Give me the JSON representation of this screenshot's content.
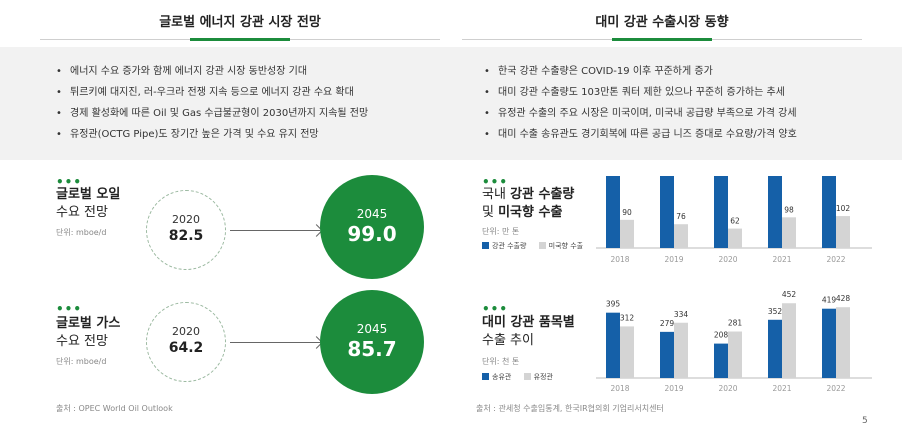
{
  "left_header": "글로벌 에너지 강관 시장 전망",
  "right_header": "대미 강관 수출시장 동향",
  "left_bullets": [
    "에너지 수요 증가와 함께 에너지 강관 시장 동반성장 기대",
    "튀르키예 대지진, 러-우크라 전쟁 지속 등으로 에너지 강관 수요 확대",
    "경제 활성화에 따른 Oil 및 Gas 수급불균형이 2030년까지 지속될 전망",
    "유정관(OCTG Pipe)도 장기간 높은 가격 및 수요 유지 전망"
  ],
  "right_bullets": [
    "한국 강관 수출량은 COVID-19 이후 꾸준하게 증가",
    "대미 강관 수출량도 103만톤 쿼터 제한 있으나 꾸준히 증가하는 추세",
    "유정관 수출의 주요 시장은 미국이며, 미국내 공급량 부족으로 가격 강세",
    "대미 수출 송유관도 경기회복에 따른 공급 니즈 증대로 수요량/가격 양호"
  ],
  "oil": {
    "dots": "•••",
    "title_line1": "글로벌 오일",
    "title_line2": "수요 전망",
    "unit": "단위: mboe/d",
    "from_year": "2020",
    "from_value": "82.5",
    "to_year": "2045",
    "to_value": "99.0"
  },
  "gas": {
    "dots": "•••",
    "title_line1": "글로벌 가스",
    "title_line2": "수요 전망",
    "unit": "단위: mboe/d",
    "from_year": "2020",
    "from_value": "64.2",
    "to_year": "2045",
    "to_value": "85.7"
  },
  "left_source": "출처 : OPEC World Oil Outlook",
  "right_source": "출처 : 관세청 수출입통계, 한국IR협의회 기업리서치센터",
  "page_number": "5",
  "export_panel": {
    "dots": "•••",
    "title_line1_pre": "국내 ",
    "title_line1_bold": "강관 수출량",
    "title_line2_pre": "및 ",
    "title_line2_bold": "미국향 수출",
    "unit": "단위: 만 톤"
  },
  "product_panel": {
    "dots": "•••",
    "title_line1_bold": "대미 강관 품목별",
    "title_line2": "수출 추이",
    "unit": "단위: 천 톤"
  },
  "colors": {
    "green": "#1c8c3c",
    "blue": "#1560a8",
    "gray": "#d4d4d4"
  },
  "chart_data": [
    {
      "type": "bar",
      "title": "",
      "categories": [
        "2018",
        "2019",
        "2020",
        "2021",
        "2022"
      ],
      "series": [
        {
          "name": "강관 수출량",
          "values": [
            null,
            null,
            null,
            null,
            null
          ],
          "color": "#1560a8"
        },
        {
          "name": "미국향 수출",
          "values": [
            90,
            76,
            62,
            98,
            102
          ],
          "color": "#d4d4d4"
        }
      ],
      "note": "",
      "ylim": [
        0,
        230
      ]
    },
    {
      "type": "bar",
      "title": "",
      "categories": [
        "2018",
        "2019",
        "2020",
        "2021",
        "2022"
      ],
      "series": [
        {
          "name": "송유관",
          "values": [
            395,
            279,
            208,
            352,
            419
          ],
          "color": "#1560a8"
        },
        {
          "name": "유정관",
          "values": [
            312,
            334,
            281,
            452,
            428
          ],
          "color": "#d4d4d4"
        }
      ],
      "ylim": [
        0,
        520
      ]
    }
  ]
}
